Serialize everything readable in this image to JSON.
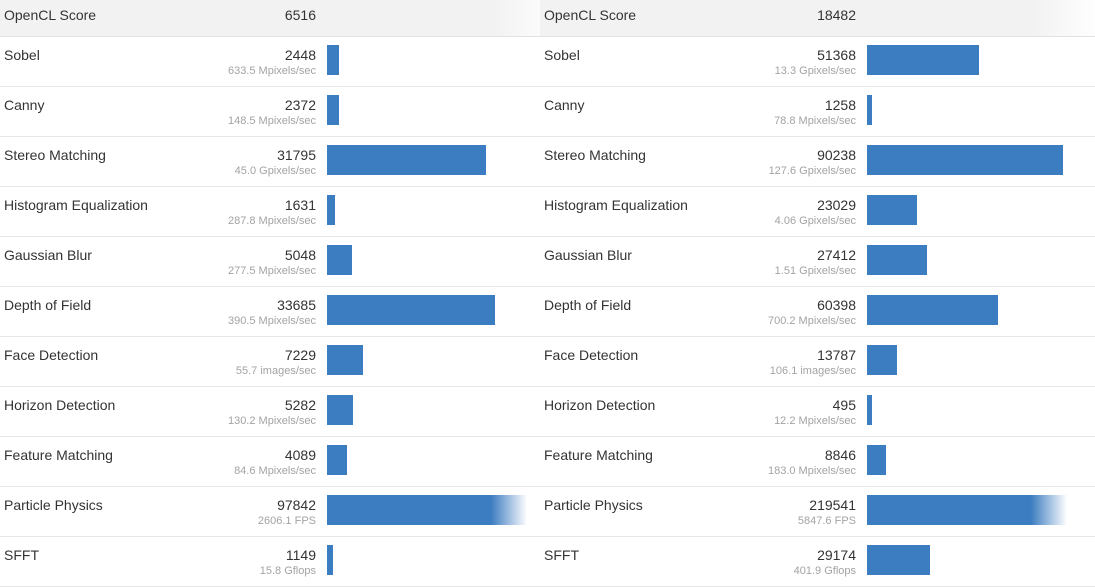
{
  "chart_data": [
    {
      "type": "bar",
      "header": {
        "label": "OpenCL Score",
        "value": "6516"
      },
      "rows": [
        {
          "label": "Sobel",
          "score": 2448,
          "rate": "633.5 Mpixels/sec"
        },
        {
          "label": "Canny",
          "score": 2372,
          "rate": "148.5 Mpixels/sec"
        },
        {
          "label": "Stereo Matching",
          "score": 31795,
          "rate": "45.0 Gpixels/sec"
        },
        {
          "label": "Histogram Equalization",
          "score": 1631,
          "rate": "287.8 Mpixels/sec"
        },
        {
          "label": "Gaussian Blur",
          "score": 5048,
          "rate": "277.5 Mpixels/sec"
        },
        {
          "label": "Depth of Field",
          "score": 33685,
          "rate": "390.5 Mpixels/sec"
        },
        {
          "label": "Face Detection",
          "score": 7229,
          "rate": "55.7 images/sec"
        },
        {
          "label": "Horizon Detection",
          "score": 5282,
          "rate": "130.2 Mpixels/sec"
        },
        {
          "label": "Feature Matching",
          "score": 4089,
          "rate": "84.6 Mpixels/sec"
        },
        {
          "label": "Particle Physics",
          "score": 97842,
          "rate": "2606.1 FPS"
        },
        {
          "label": "SFFT",
          "score": 1149,
          "rate": "15.8 Gflops"
        }
      ],
      "bar_max": 40000,
      "bar_color": "#3c7cc0"
    },
    {
      "type": "bar",
      "header": {
        "label": "OpenCL Score",
        "value": "18482"
      },
      "rows": [
        {
          "label": "Sobel",
          "score": 51368,
          "rate": "13.3 Gpixels/sec"
        },
        {
          "label": "Canny",
          "score": 1258,
          "rate": "78.8 Mpixels/sec"
        },
        {
          "label": "Stereo Matching",
          "score": 90238,
          "rate": "127.6 Gpixels/sec"
        },
        {
          "label": "Histogram Equalization",
          "score": 23029,
          "rate": "4.06 Gpixels/sec"
        },
        {
          "label": "Gaussian Blur",
          "score": 27412,
          "rate": "1.51 Gpixels/sec"
        },
        {
          "label": "Depth of Field",
          "score": 60398,
          "rate": "700.2 Mpixels/sec"
        },
        {
          "label": "Face Detection",
          "score": 13787,
          "rate": "106.1 images/sec"
        },
        {
          "label": "Horizon Detection",
          "score": 495,
          "rate": "12.2 Mpixels/sec"
        },
        {
          "label": "Feature Matching",
          "score": 8846,
          "rate": "183.0 Mpixels/sec"
        },
        {
          "label": "Particle Physics",
          "score": 219541,
          "rate": "5847.6 FPS"
        },
        {
          "label": "SFFT",
          "score": 29174,
          "rate": "401.9 Gflops"
        }
      ],
      "bar_max": 92000,
      "bar_color": "#3c7cc0"
    }
  ]
}
